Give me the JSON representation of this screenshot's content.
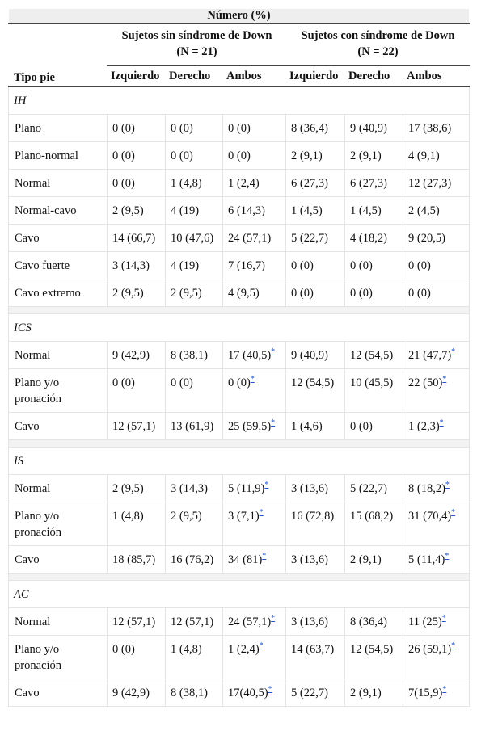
{
  "header": {
    "top": "Número (%)",
    "groups": [
      [
        "Sujetos sin síndrome de Down",
        "(N = 21)"
      ],
      [
        "Sujetos con síndrome de Down",
        "(N = 22)"
      ]
    ],
    "columns": [
      "Tipo pie",
      "Izquierdo",
      "Derecho",
      "Ambos",
      "Izquierdo",
      "Derecho",
      "Ambos"
    ]
  },
  "sections": [
    {
      "title": "IH",
      "rows": [
        {
          "label": "Plano",
          "cells": [
            "0 (0)",
            "0 (0)",
            "0 (0)",
            "8 (36,4)",
            "9 (40,9)",
            "17 (38,6)"
          ]
        },
        {
          "label": "Plano-normal",
          "cells": [
            "0 (0)",
            "0 (0)",
            "0 (0)",
            "2 (9,1)",
            "2 (9,1)",
            "4 (9,1)"
          ]
        },
        {
          "label": "Normal",
          "cells": [
            "0 (0)",
            "1 (4,8)",
            "1 (2,4)",
            "6 (27,3)",
            "6 (27,3)",
            "12 (27,3)"
          ]
        },
        {
          "label": "Normal-cavo",
          "cells": [
            "2 (9,5)",
            "4 (19)",
            "6 (14,3)",
            "1 (4,5)",
            "1 (4,5)",
            "2 (4,5)"
          ]
        },
        {
          "label": "Cavo",
          "cells": [
            "14 (66,7)",
            "10 (47,6)",
            "24 (57,1)",
            "5 (22,7)",
            "4 (18,2)",
            "9 (20,5)"
          ]
        },
        {
          "label": "Cavo fuerte",
          "cells": [
            "3 (14,3)",
            "4 (19)",
            "7 (16,7)",
            "0 (0)",
            "0 (0)",
            "0 (0)"
          ]
        },
        {
          "label": "Cavo extremo",
          "cells": [
            "2 (9,5)",
            "2 (9,5)",
            "4 (9,5)",
            "0 (0)",
            "0 (0)",
            "0 (0)"
          ]
        }
      ]
    },
    {
      "title": "ICS",
      "rows": [
        {
          "label": "Normal",
          "cells": [
            "9 (42,9)",
            "8 (38,1)",
            {
              "text": "17 (40,5)",
              "note": "*"
            },
            "9 (40,9)",
            "12 (54,5)",
            {
              "text": "21 (47,7)",
              "note": "*"
            }
          ]
        },
        {
          "label": "Plano y/o pronación",
          "cells": [
            "0 (0)",
            "0 (0)",
            {
              "text": "0 (0)",
              "note": "*"
            },
            "12 (54,5)",
            "10 (45,5)",
            {
              "text": "22 (50)",
              "note": "*"
            }
          ]
        },
        {
          "label": "Cavo",
          "cells": [
            "12 (57,1)",
            "13 (61,9)",
            {
              "text": "25 (59,5)",
              "note": "*"
            },
            "1 (4,6)",
            "0 (0)",
            {
              "text": "1 (2,3)",
              "note": "*"
            }
          ]
        }
      ]
    },
    {
      "title": "IS",
      "rows": [
        {
          "label": "Normal",
          "cells": [
            "2 (9,5)",
            "3 (14,3)",
            {
              "text": "5 (11,9)",
              "note": "*"
            },
            "3 (13,6)",
            "5 (22,7)",
            {
              "text": "8 (18,2)",
              "note": "*"
            }
          ]
        },
        {
          "label": "Plano y/o pronación",
          "cells": [
            "1 (4,8)",
            "2 (9,5)",
            {
              "text": "3 (7,1)",
              "note": "*"
            },
            "16 (72,8)",
            "15 (68,2)",
            {
              "text": "31 (70,4)",
              "note": "*"
            }
          ]
        },
        {
          "label": "Cavo",
          "cells": [
            "18 (85,7)",
            "16 (76,2)",
            {
              "text": "34 (81)",
              "note": "*"
            },
            "3 (13,6)",
            "2 (9,1)",
            {
              "text": "5 (11,4)",
              "note": "*"
            }
          ]
        }
      ]
    },
    {
      "title": "AC",
      "rows": [
        {
          "label": "Normal",
          "cells": [
            "12 (57,1)",
            "12 (57,1)",
            {
              "text": "24 (57,1)",
              "note": "*"
            },
            "3 (13,6)",
            "8 (36,4)",
            {
              "text": "11 (25)",
              "note": "*"
            }
          ]
        },
        {
          "label": "Plano y/o pronación",
          "cells": [
            "0 (0)",
            "1 (4,8)",
            {
              "text": "1 (2,4)",
              "note": "*"
            },
            "14 (63,7)",
            "12 (54,5)",
            {
              "text": "26 (59,1)",
              "note": "*"
            }
          ]
        },
        {
          "label": "Cavo",
          "cells": [
            "9 (42,9)",
            "8 (38,1)",
            {
              "text": "17(40,5)",
              "note": "*"
            },
            "5 (22,7)",
            "2 (9,1)",
            {
              "text": "7(15,9)",
              "note": "*"
            }
          ]
        }
      ]
    }
  ]
}
